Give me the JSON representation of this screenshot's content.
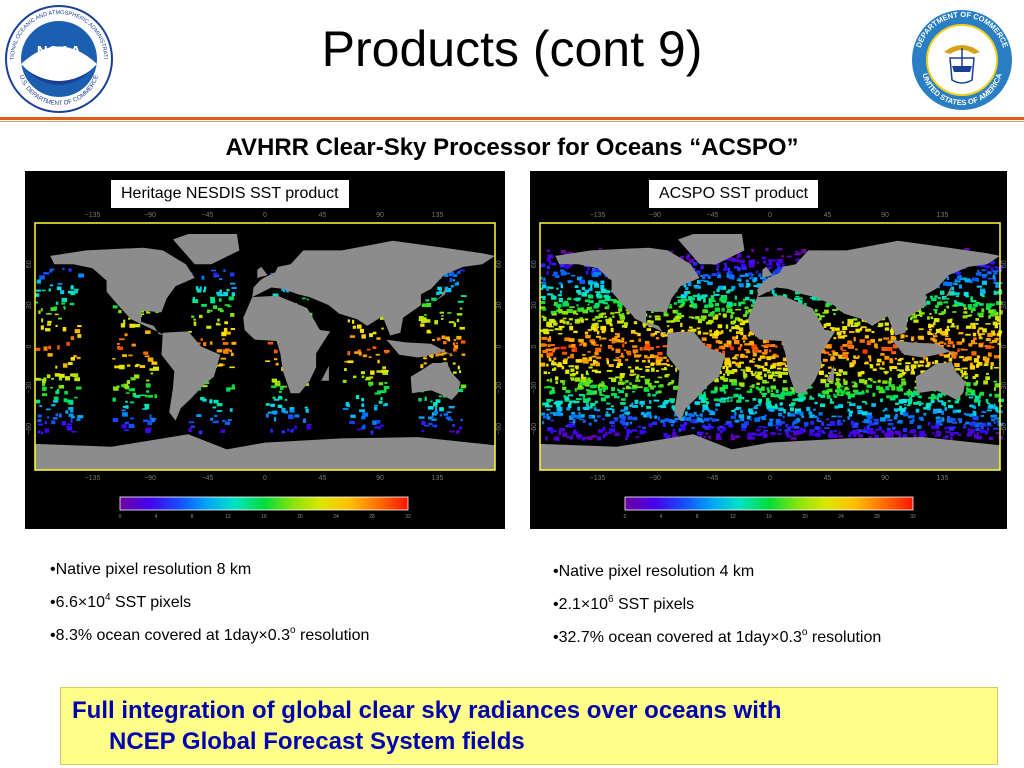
{
  "title": "Products (cont 9)",
  "subtitle": "AVHRR Clear-Sky Processor for Oceans “ACSPO”",
  "noaa_logo": {
    "text": "NOAA",
    "ring_top": "NATIONAL OCEANIC AND ATMOSPHERIC ADMINISTRATION",
    "ring_bottom": "U.S. DEPARTMENT OF COMMERCE"
  },
  "doc_seal": {
    "ring_top": "DEPARTMENT OF COMMERCE",
    "ring_bottom": "UNITED STATES OF AMERICA"
  },
  "left_panel": {
    "label": "Heritage NESDIS SST product",
    "lon_ticks": [
      "−135",
      "−90",
      "−45",
      "0",
      "45",
      "90",
      "135"
    ],
    "lat_ticks": [
      "60",
      "30",
      "0",
      "−30",
      "−60"
    ],
    "colorbar_ticks": [
      "0",
      "4",
      "8",
      "12",
      "16",
      "20",
      "24",
      "28",
      "32"
    ],
    "bullets": {
      "b1": "•Native pixel resolution 8 km",
      "b2_pre": "•6.6×10",
      "b2_sup": "4",
      "b2_post": " SST pixels",
      "b3_pre": "•8.3% ocean covered at 1day×0.3",
      "b3_sup": "o",
      "b3_post": " resolution"
    }
  },
  "right_panel": {
    "label": "ACSPO SST product",
    "lon_ticks": [
      "−135",
      "−90",
      "−45",
      "0",
      "45",
      "90",
      "135"
    ],
    "lat_ticks": [
      "60",
      "30",
      "0",
      "−30",
      "−60"
    ],
    "colorbar_ticks": [
      "0",
      "4",
      "8",
      "12",
      "16",
      "20",
      "24",
      "28",
      "32"
    ],
    "bullets": {
      "b1": "•Native pixel resolution 4 km",
      "b2_pre": "•2.1×10",
      "b2_sup": "6",
      "b2_post": " SST pixels",
      "b3_pre": "•32.7% ocean covered at 1day×0.3",
      "b3_sup": "o",
      "b3_post": " resolution"
    }
  },
  "bottom_box": {
    "line1": "Full integration of global clear sky radiances over oceans with",
    "line2": "NCEP Global Forecast System fields"
  },
  "colors": {
    "accent_rule": "#e05a1e",
    "bottom_text": "#0000b0",
    "bottom_bg": "#ffff8a",
    "land": "#8c8c8c",
    "frame": "#ffff33"
  }
}
